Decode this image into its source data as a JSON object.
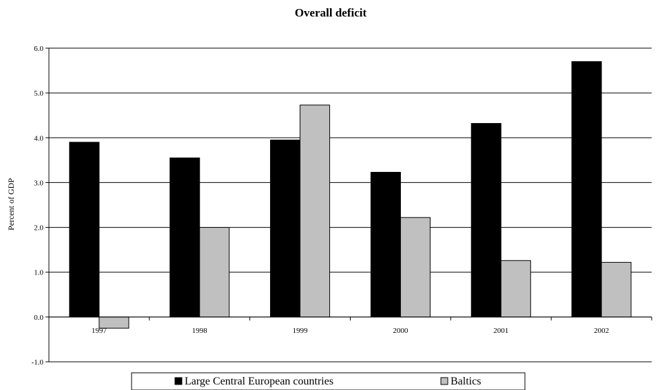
{
  "chart_data": {
    "type": "bar",
    "title": "Overall deficit",
    "xlabel": "",
    "ylabel": "Percent of GDP",
    "categories": [
      "1997",
      "1998",
      "1999",
      "2000",
      "2001",
      "2002"
    ],
    "series": [
      {
        "name": "Large Central European countries",
        "values": [
          3.9,
          3.55,
          3.95,
          3.23,
          4.32,
          5.7
        ],
        "color": "#000000"
      },
      {
        "name": "Baltics",
        "values": [
          -0.25,
          2.0,
          4.73,
          2.22,
          1.26,
          1.22
        ],
        "color": "#c0c0c0"
      }
    ],
    "ylim": [
      -1.0,
      6.0
    ],
    "yticks": [
      "-1.0",
      "0.0",
      "1.0",
      "2.0",
      "3.0",
      "4.0",
      "5.0",
      "6.0"
    ],
    "grid": true,
    "legend_position": "bottom"
  }
}
